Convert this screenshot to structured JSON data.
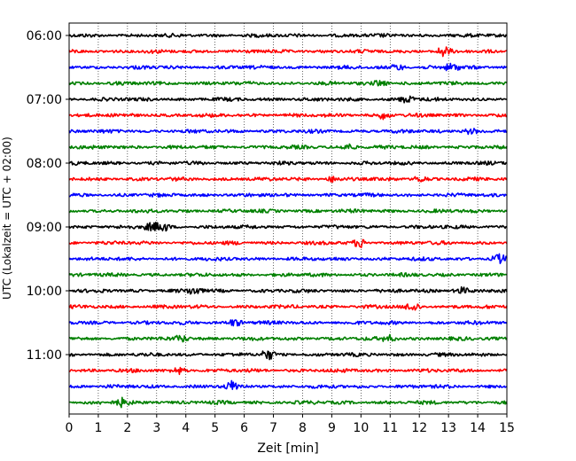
{
  "chart_data": {
    "type": "line",
    "title": "",
    "xlabel": "Zeit  [min]",
    "ylabel": "UTC (Lokalzeit = UTC + 02:00)",
    "xlim": [
      0,
      15
    ],
    "x_ticks": [
      0,
      1,
      2,
      3,
      4,
      5,
      6,
      7,
      8,
      9,
      10,
      11,
      12,
      13,
      14,
      15
    ],
    "grid": "vertical dotted",
    "legend": "none",
    "y_ticks": [
      {
        "label": "06:00",
        "row": 0
      },
      {
        "label": "07:00",
        "row": 4
      },
      {
        "label": "08:00",
        "row": 8
      },
      {
        "label": "09:00",
        "row": 12
      },
      {
        "label": "10:00",
        "row": 16
      },
      {
        "label": "11:00",
        "row": 20
      }
    ],
    "trace_interval_min": 15,
    "color_cycle": [
      "#000000",
      "#ff0000",
      "#0000ff",
      "#008000"
    ],
    "rows": [
      {
        "start": "06:00",
        "color": "#000000",
        "events": []
      },
      {
        "start": "06:15",
        "color": "#ff0000",
        "events": [
          12.8
        ]
      },
      {
        "start": "06:30",
        "color": "#0000ff",
        "events": [
          11.3,
          13.1
        ]
      },
      {
        "start": "06:45",
        "color": "#008000",
        "events": [
          10.7
        ]
      },
      {
        "start": "07:00",
        "color": "#000000",
        "events": [
          11.6
        ]
      },
      {
        "start": "07:15",
        "color": "#ff0000",
        "events": [
          10.8
        ]
      },
      {
        "start": "07:30",
        "color": "#0000ff",
        "events": [
          13.7
        ]
      },
      {
        "start": "07:45",
        "color": "#008000",
        "events": [
          9.6
        ]
      },
      {
        "start": "08:00",
        "color": "#000000",
        "events": []
      },
      {
        "start": "08:15",
        "color": "#ff0000",
        "events": [
          9.0,
          12.0
        ]
      },
      {
        "start": "08:30",
        "color": "#0000ff",
        "events": []
      },
      {
        "start": "08:45",
        "color": "#008000",
        "events": []
      },
      {
        "start": "09:00",
        "color": "#000000",
        "events": [
          2.8,
          3.2
        ]
      },
      {
        "start": "09:15",
        "color": "#ff0000",
        "events": [
          10.0
        ]
      },
      {
        "start": "09:30",
        "color": "#0000ff",
        "events": [
          14.7
        ]
      },
      {
        "start": "09:45",
        "color": "#008000",
        "events": []
      },
      {
        "start": "10:00",
        "color": "#000000",
        "events": [
          4.3,
          13.4
        ]
      },
      {
        "start": "10:15",
        "color": "#ff0000",
        "events": [
          11.8
        ]
      },
      {
        "start": "10:30",
        "color": "#0000ff",
        "events": [
          5.7
        ]
      },
      {
        "start": "10:45",
        "color": "#008000",
        "events": [
          3.9,
          11.0
        ]
      },
      {
        "start": "11:00",
        "color": "#000000",
        "events": [
          6.8
        ]
      },
      {
        "start": "11:15",
        "color": "#ff0000",
        "events": [
          3.8
        ]
      },
      {
        "start": "11:30",
        "color": "#0000ff",
        "events": [
          5.6
        ]
      },
      {
        "start": "11:45",
        "color": "#008000",
        "events": [
          1.8
        ]
      }
    ]
  }
}
